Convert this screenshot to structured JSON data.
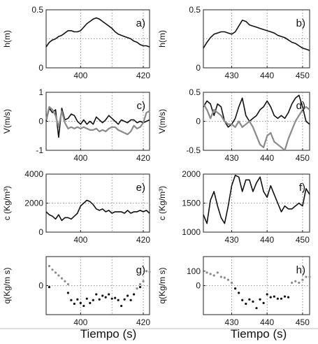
{
  "styles": {
    "black_line": "#111111",
    "gray_line": "#8a8a8a",
    "grid": "#777777"
  },
  "chart_data": [
    {
      "type": "line",
      "panel": "a)",
      "ylabel": "h(m)",
      "xlim": [
        389,
        422
      ],
      "ylim": [
        0,
        0.5
      ],
      "xticks": [
        400,
        420
      ],
      "yticks": [
        0,
        0.5
      ],
      "xgrid": [
        400,
        410,
        420
      ],
      "ygrid": [
        0.25
      ],
      "series": [
        {
          "color": "black",
          "x": [
            389,
            390,
            391,
            392,
            393,
            394,
            395,
            396,
            397,
            398,
            399,
            400,
            401,
            402,
            403,
            404,
            405,
            406,
            407,
            408,
            409,
            410,
            411,
            412,
            413,
            414,
            415,
            416,
            417,
            418,
            419,
            420,
            421,
            422
          ],
          "y": [
            0.18,
            0.22,
            0.24,
            0.25,
            0.27,
            0.28,
            0.3,
            0.32,
            0.32,
            0.31,
            0.31,
            0.32,
            0.35,
            0.38,
            0.4,
            0.42,
            0.43,
            0.42,
            0.4,
            0.38,
            0.36,
            0.34,
            0.31,
            0.29,
            0.28,
            0.27,
            0.26,
            0.25,
            0.23,
            0.22,
            0.2,
            0.19,
            0.19,
            0.18
          ]
        }
      ]
    },
    {
      "type": "line",
      "panel": "b)",
      "ylabel": "h(m)",
      "xlim": [
        422,
        452
      ],
      "ylim": [
        0,
        0.5
      ],
      "xticks": [
        430,
        440,
        450
      ],
      "yticks": [
        0,
        0.5
      ],
      "xgrid": [
        430,
        440,
        450
      ],
      "ygrid": [
        0.25
      ],
      "series": [
        {
          "color": "black",
          "x": [
            422,
            423,
            424,
            425,
            426,
            427,
            428,
            429,
            430,
            431,
            432,
            433,
            434,
            435,
            436,
            437,
            438,
            439,
            440,
            441,
            442,
            443,
            444,
            445,
            446,
            447,
            448,
            449,
            450,
            451,
            452
          ],
          "y": [
            0.17,
            0.22,
            0.26,
            0.29,
            0.3,
            0.31,
            0.31,
            0.3,
            0.29,
            0.31,
            0.36,
            0.41,
            0.4,
            0.37,
            0.36,
            0.35,
            0.34,
            0.33,
            0.32,
            0.31,
            0.3,
            0.28,
            0.27,
            0.26,
            0.24,
            0.22,
            0.21,
            0.19,
            0.17,
            0.16,
            0.15
          ]
        }
      ]
    },
    {
      "type": "line",
      "panel": "c)",
      "ylabel": "V(m/s)",
      "xlim": [
        389,
        422
      ],
      "ylim": [
        -1,
        1
      ],
      "xticks": [
        400,
        420
      ],
      "yticks": [
        -1,
        0,
        1
      ],
      "xgrid": [
        400,
        410,
        420
      ],
      "ygrid": [
        0
      ],
      "series": [
        {
          "color": "black",
          "x": [
            389,
            390,
            391,
            392,
            393,
            394,
            395,
            396,
            397,
            398,
            399,
            400,
            401,
            402,
            403,
            404,
            405,
            406,
            407,
            408,
            409,
            410,
            411,
            412,
            413,
            414,
            415,
            416,
            417,
            418,
            419,
            420,
            421,
            422
          ],
          "y": [
            0.0,
            0.45,
            0.3,
            0.4,
            -0.55,
            0.45,
            0.05,
            0.1,
            0.25,
            0.2,
            0.0,
            -0.1,
            0.05,
            -0.1,
            0.0,
            -0.1,
            0.15,
            0.05,
            -0.05,
            0.05,
            0.2,
            0.1,
            0.0,
            -0.1,
            0.05,
            0.0,
            -0.05,
            0.05,
            0.05,
            -0.05,
            0.0,
            -0.05,
            0.0,
            0.05
          ]
        },
        {
          "color": "gray",
          "x": [
            389,
            390,
            391,
            392,
            393,
            394,
            395,
            396,
            397,
            398,
            399,
            400,
            401,
            402,
            403,
            404,
            405,
            406,
            407,
            408,
            409,
            410,
            411,
            412,
            413,
            414,
            415,
            416,
            417,
            418,
            419,
            420,
            421,
            422
          ],
          "y": [
            0.05,
            0.5,
            0.4,
            0.2,
            -0.2,
            0.35,
            -0.05,
            -0.25,
            -0.2,
            -0.25,
            -0.2,
            -0.25,
            -0.2,
            -0.25,
            -0.3,
            -0.3,
            -0.25,
            -0.35,
            -0.3,
            -0.35,
            -0.25,
            -0.2,
            -0.2,
            -0.3,
            -0.35,
            -0.4,
            -0.45,
            -0.35,
            -0.15,
            -0.25,
            -0.2,
            -0.05,
            0.3,
            0.35
          ]
        }
      ]
    },
    {
      "type": "line",
      "panel": "d)",
      "ylabel": "V(m/s)",
      "xlim": [
        422,
        452
      ],
      "ylim": [
        -0.5,
        0.5
      ],
      "xticks": [
        430,
        440,
        450
      ],
      "yticks": [
        -0.5,
        0,
        0.5
      ],
      "xgrid": [
        430,
        440,
        450
      ],
      "ygrid": [
        0
      ],
      "series": [
        {
          "color": "black",
          "x": [
            422,
            423,
            424,
            425,
            426,
            427,
            428,
            429,
            430,
            431,
            432,
            433,
            434,
            435,
            436,
            437,
            438,
            439,
            440,
            441,
            442,
            443,
            444,
            445,
            446,
            447,
            448,
            449,
            450,
            451,
            452
          ],
          "y": [
            0.25,
            0.35,
            0.3,
            0.1,
            0.3,
            0.25,
            0.0,
            -0.1,
            -0.05,
            0.05,
            0.25,
            0.4,
            0.1,
            0.0,
            0.05,
            0.1,
            0.2,
            0.25,
            0.35,
            0.25,
            0.1,
            0.05,
            0.1,
            0.05,
            0.15,
            0.3,
            0.4,
            0.45,
            0.25,
            0.0,
            -0.05
          ]
        },
        {
          "color": "gray",
          "x": [
            422,
            423,
            424,
            425,
            426,
            427,
            428,
            429,
            430,
            431,
            432,
            433,
            434,
            435,
            436,
            437,
            438,
            439,
            440,
            441,
            442,
            443,
            444,
            445,
            446,
            447,
            448,
            449,
            450,
            451,
            452
          ],
          "y": [
            0.3,
            0.2,
            0.05,
            0.2,
            0.15,
            0.1,
            0.0,
            -0.05,
            -0.05,
            -0.1,
            0.0,
            -0.1,
            -0.05,
            0.0,
            -0.1,
            -0.25,
            -0.4,
            -0.45,
            -0.25,
            -0.2,
            -0.35,
            -0.4,
            -0.45,
            -0.5,
            -0.3,
            -0.15,
            0.0,
            0.1,
            0.2,
            0.25,
            0.2
          ]
        }
      ]
    },
    {
      "type": "line",
      "panel": "e)",
      "ylabel": "c (Kg/m³)",
      "xlim": [
        389,
        422
      ],
      "ylim": [
        0,
        4000
      ],
      "xticks": [
        400,
        420
      ],
      "yticks": [
        0,
        2000,
        4000
      ],
      "xgrid": [
        400,
        410,
        420
      ],
      "ygrid": [
        2000
      ],
      "series": [
        {
          "color": "black",
          "x": [
            389,
            390,
            391,
            392,
            393,
            394,
            395,
            396,
            397,
            398,
            399,
            400,
            401,
            402,
            403,
            404,
            405,
            406,
            407,
            408,
            409,
            410,
            411,
            412,
            413,
            414,
            415,
            416,
            417,
            418,
            419,
            420,
            421,
            422
          ],
          "y": [
            1400,
            1200,
            1100,
            900,
            1200,
            800,
            1000,
            1000,
            900,
            1100,
            1300,
            1800,
            2000,
            2200,
            2100,
            1900,
            1600,
            1500,
            1600,
            1400,
            1500,
            1300,
            1400,
            1400,
            1400,
            1300,
            1500,
            1300,
            1400,
            1400,
            1500,
            1400,
            1500,
            1300
          ]
        }
      ]
    },
    {
      "type": "line",
      "panel": "f)",
      "ylabel": "c (Kg/m³)",
      "xlim": [
        422,
        452
      ],
      "ylim": [
        1000,
        2000
      ],
      "xticks": [
        430,
        440,
        450
      ],
      "yticks": [
        1000,
        1500,
        2000
      ],
      "xgrid": [
        430,
        440,
        450
      ],
      "ygrid": [
        1500
      ],
      "series": [
        {
          "color": "black",
          "x": [
            422,
            423,
            424,
            425,
            426,
            427,
            428,
            429,
            430,
            431,
            432,
            433,
            434,
            435,
            436,
            437,
            438,
            439,
            440,
            441,
            442,
            443,
            444,
            445,
            446,
            447,
            448,
            449,
            450,
            451,
            452
          ],
          "y": [
            1300,
            1150,
            1550,
            1700,
            1450,
            1250,
            1150,
            1450,
            1800,
            1980,
            1950,
            1700,
            1900,
            1900,
            1700,
            1850,
            1950,
            1700,
            1600,
            1800,
            1650,
            1500,
            1350,
            1450,
            1400,
            1400,
            1450,
            1500,
            1450,
            1750,
            1650
          ]
        }
      ]
    },
    {
      "type": "scatter",
      "panel": "g)",
      "ylabel": "q(Kg/m s)",
      "xlim": [
        389,
        422
      ],
      "ylim": [
        -200,
        200
      ],
      "xticks": [
        400,
        420
      ],
      "yticks": [
        0
      ],
      "xgrid": [
        400,
        410,
        420
      ],
      "ygrid": [
        0
      ],
      "series": [
        {
          "color": "gray",
          "x": [
            390,
            391,
            392,
            393,
            394,
            395,
            396,
            418,
            419,
            420,
            421,
            422
          ],
          "y": [
            135,
            110,
            90,
            70,
            50,
            30,
            10,
            -20,
            10,
            30,
            100,
            95
          ]
        },
        {
          "color": "black",
          "x": [
            390,
            396,
            397,
            398,
            399,
            400,
            401,
            402,
            403,
            404,
            405,
            406,
            407,
            408,
            409,
            410,
            411,
            412,
            413,
            414,
            415,
            416,
            417,
            419
          ],
          "y": [
            -10,
            -50,
            -100,
            -125,
            -95,
            -120,
            -140,
            -90,
            -120,
            -100,
            -60,
            -95,
            -70,
            -80,
            -60,
            -90,
            -85,
            -100,
            -140,
            -95,
            -70,
            -100,
            -60,
            -10
          ]
        }
      ]
    },
    {
      "type": "scatter",
      "panel": "h)",
      "ylabel": "q(Kg/m s)",
      "xlim": [
        422,
        452
      ],
      "ylim": [
        -200,
        200
      ],
      "xticks": [
        430,
        440,
        450
      ],
      "yticks": [
        0,
        100
      ],
      "xgrid": [
        430,
        440,
        450
      ],
      "ygrid": [
        0
      ],
      "series": [
        {
          "color": "gray",
          "x": [
            423,
            424,
            425,
            426,
            427,
            428,
            429,
            430,
            447,
            448,
            449,
            450,
            451,
            452
          ],
          "y": [
            90,
            80,
            70,
            90,
            60,
            55,
            40,
            20,
            20,
            30,
            20,
            40,
            60,
            60
          ]
        },
        {
          "color": "black",
          "x": [
            431,
            432,
            433,
            434,
            435,
            436,
            437,
            438,
            439,
            440,
            441,
            442,
            443,
            444,
            445,
            446
          ],
          "y": [
            -20,
            -50,
            -100,
            -125,
            -95,
            -110,
            -155,
            -95,
            -120,
            -60,
            -80,
            -75,
            -90,
            -90,
            -75,
            -80
          ]
        }
      ]
    }
  ],
  "xlabels": {
    "left": "Tiempo (s)",
    "right": "Tiempo (s)"
  }
}
